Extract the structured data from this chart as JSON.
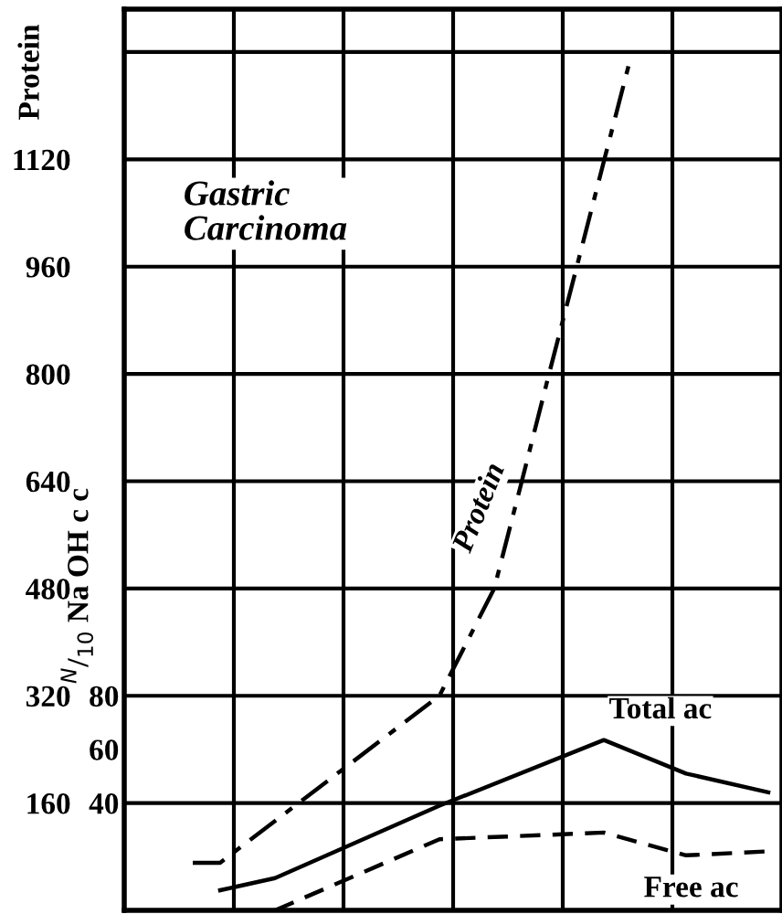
{
  "chart_data": {
    "type": "line",
    "title": "Gastric Carcinoma",
    "ylabel": "Protein",
    "y2label": "$^{N}$/$_{10}$ Na OH c c",
    "categories": [
      null,
      null,
      null,
      null,
      null,
      null,
      null,
      null,
      null,
      null,
      null,
      null,
      null,
      null,
      null,
      null,
      null,
      null,
      null,
      null,
      null,
      null,
      null,
      null
    ],
    "ylim": [
      0,
      1344
    ],
    "yticks": [
      160,
      320,
      480,
      640,
      800,
      960,
      1120,
      {
        "value": 1280,
        "label": null
      }
    ],
    "y2lim": [
      0,
      336
    ],
    "y2ticks": [
      40,
      60,
      80
    ],
    "grid": true,
    "series": [
      {
        "name": "Protein",
        "color": "#000000",
        "line_style": "dashdot",
        "values": [
          null,
          null,
          71,
          71,
          null,
          null,
          null,
          null,
          null,
          null,
          null,
          320,
          null,
          480,
          639,
          800,
          958,
          1117,
          1275,
          null,
          null,
          null,
          null,
          null
        ]
      },
      {
        "name": "Total ac",
        "color": "#000000",
        "line_style": "solid",
        "axis": "y2",
        "values": [
          null,
          null,
          null,
          7.5,
          null,
          12,
          null,
          null,
          null,
          null,
          null,
          39,
          null,
          null,
          null,
          null,
          null,
          63.5,
          null,
          null,
          51,
          null,
          null,
          44
        ]
      },
      {
        "name": "Free ac",
        "color": "#000000",
        "line_style": "dashed",
        "axis": "y2",
        "values": [
          null,
          null,
          null,
          null,
          null,
          0,
          null,
          null,
          null,
          null,
          null,
          26.5,
          null,
          null,
          null,
          null,
          null,
          29,
          null,
          null,
          20.5,
          null,
          null,
          22
        ]
      }
    ]
  }
}
